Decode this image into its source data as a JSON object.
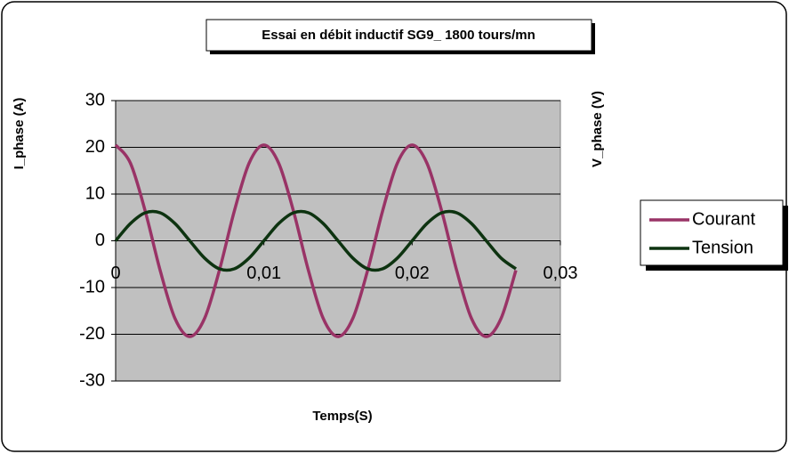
{
  "chart_data": {
    "type": "line",
    "title": "Essai en débit inductif SG9_ 1800 tours/mn",
    "ylabel": "I_phase (A)",
    "y2label": "V_phase (V)",
    "xlabel": "Temps(S)",
    "x": [
      0,
      0.001,
      0.002,
      0.003,
      0.004,
      0.005,
      0.006,
      0.007,
      0.008,
      0.009,
      0.01,
      0.011,
      0.012,
      0.013,
      0.014,
      0.015,
      0.016,
      0.017,
      0.018,
      0.019,
      0.02,
      0.021,
      0.022,
      0.023,
      0.024,
      0.025,
      0.026,
      0.027
    ],
    "series": [
      {
        "name": "Courant",
        "color": "#993366",
        "values": [
          20.5,
          16.6,
          6.3,
          -6.3,
          -16.6,
          -20.5,
          -16.6,
          -6.3,
          6.3,
          16.6,
          20.5,
          16.6,
          6.3,
          -6.3,
          -16.6,
          -20.5,
          -16.6,
          -6.3,
          6.3,
          16.6,
          20.5,
          16.6,
          6.3,
          -6.3,
          -16.6,
          -20.5,
          -16.6,
          -6.3
        ]
      },
      {
        "name": "Tension",
        "color": "#0d3310",
        "values": [
          0,
          3.7,
          6.0,
          6.0,
          3.7,
          0,
          -3.7,
          -6.0,
          -6.0,
          -3.7,
          0,
          3.7,
          6.0,
          6.0,
          3.7,
          0,
          -3.7,
          -6.0,
          -6.0,
          -3.7,
          0,
          3.7,
          6.0,
          6.0,
          3.7,
          0,
          -3.7,
          -6.0
        ]
      }
    ],
    "xlim": [
      0,
      0.03
    ],
    "xticks": [
      0,
      {
        "value": 0.01,
        "label": "0,01"
      },
      {
        "value": 0.02,
        "label": "0,02"
      },
      {
        "value": 0.03,
        "label": "0,03"
      }
    ],
    "ylim": [
      -30,
      30
    ],
    "yticks": [
      -30,
      -20,
      -10,
      0,
      10,
      20,
      30
    ],
    "grid": true,
    "legend": "right"
  }
}
